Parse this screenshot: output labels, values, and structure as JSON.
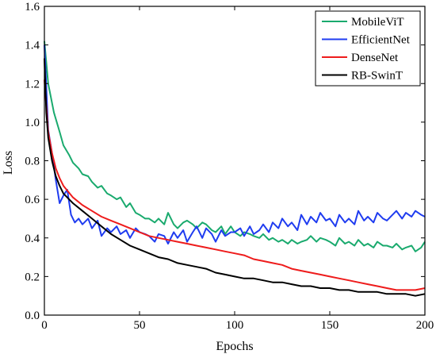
{
  "chart_data": {
    "type": "line",
    "title": "",
    "xlabel": "Epochs",
    "ylabel": "Loss",
    "xlim": [
      0,
      200
    ],
    "ylim": [
      0.0,
      1.6
    ],
    "x_ticks": [
      "0",
      "50",
      "100",
      "150",
      "200"
    ],
    "y_ticks": [
      "0.0",
      "0.2",
      "0.4",
      "0.6",
      "0.8",
      "1.0",
      "1.2",
      "1.4",
      "1.6"
    ],
    "grid": false,
    "legend_position": "top-right",
    "series": [
      {
        "name": "MobileViT",
        "color": "#1aaa6e",
        "x": [
          0,
          2,
          5,
          8,
          10,
          13,
          15,
          18,
          20,
          23,
          25,
          28,
          30,
          33,
          35,
          38,
          40,
          43,
          45,
          48,
          50,
          53,
          55,
          58,
          60,
          63,
          65,
          68,
          70,
          73,
          75,
          78,
          80,
          83,
          85,
          88,
          90,
          93,
          95,
          98,
          100,
          103,
          105,
          108,
          110,
          113,
          115,
          118,
          120,
          123,
          125,
          128,
          130,
          133,
          135,
          138,
          140,
          143,
          145,
          148,
          150,
          153,
          155,
          158,
          160,
          163,
          165,
          168,
          170,
          173,
          175,
          178,
          180,
          183,
          185,
          188,
          190,
          193,
          195,
          198,
          200
        ],
        "values": [
          1.42,
          1.2,
          1.05,
          0.95,
          0.88,
          0.83,
          0.79,
          0.76,
          0.73,
          0.72,
          0.69,
          0.66,
          0.67,
          0.63,
          0.62,
          0.6,
          0.61,
          0.56,
          0.58,
          0.53,
          0.52,
          0.5,
          0.5,
          0.48,
          0.5,
          0.47,
          0.53,
          0.47,
          0.45,
          0.48,
          0.49,
          0.47,
          0.45,
          0.48,
          0.47,
          0.44,
          0.43,
          0.46,
          0.42,
          0.46,
          0.43,
          0.41,
          0.43,
          0.42,
          0.41,
          0.4,
          0.42,
          0.39,
          0.4,
          0.38,
          0.39,
          0.37,
          0.39,
          0.37,
          0.38,
          0.39,
          0.41,
          0.38,
          0.4,
          0.39,
          0.38,
          0.36,
          0.4,
          0.37,
          0.38,
          0.36,
          0.39,
          0.36,
          0.37,
          0.35,
          0.38,
          0.36,
          0.36,
          0.35,
          0.37,
          0.34,
          0.35,
          0.36,
          0.33,
          0.35,
          0.38
        ]
      },
      {
        "name": "EfficientNet",
        "color": "#1f3cf0",
        "x": [
          0,
          2,
          4,
          6,
          8,
          10,
          12,
          14,
          16,
          18,
          20,
          23,
          25,
          28,
          30,
          33,
          35,
          38,
          40,
          43,
          45,
          48,
          50,
          53,
          55,
          58,
          60,
          63,
          65,
          68,
          70,
          73,
          75,
          78,
          80,
          83,
          85,
          88,
          90,
          93,
          95,
          98,
          100,
          103,
          105,
          108,
          110,
          113,
          115,
          118,
          120,
          123,
          125,
          128,
          130,
          133,
          135,
          138,
          140,
          143,
          145,
          148,
          150,
          153,
          155,
          158,
          160,
          163,
          165,
          168,
          170,
          173,
          175,
          178,
          180,
          183,
          185,
          188,
          190,
          193,
          195,
          198,
          200
        ],
        "values": [
          1.4,
          0.96,
          0.84,
          0.7,
          0.58,
          0.62,
          0.65,
          0.52,
          0.48,
          0.5,
          0.47,
          0.5,
          0.45,
          0.49,
          0.41,
          0.45,
          0.43,
          0.46,
          0.42,
          0.44,
          0.4,
          0.45,
          0.43,
          0.42,
          0.41,
          0.38,
          0.42,
          0.41,
          0.37,
          0.43,
          0.4,
          0.44,
          0.38,
          0.43,
          0.46,
          0.4,
          0.45,
          0.42,
          0.38,
          0.44,
          0.41,
          0.43,
          0.43,
          0.45,
          0.41,
          0.46,
          0.42,
          0.44,
          0.47,
          0.43,
          0.48,
          0.45,
          0.5,
          0.46,
          0.48,
          0.44,
          0.52,
          0.47,
          0.51,
          0.48,
          0.53,
          0.49,
          0.5,
          0.46,
          0.52,
          0.48,
          0.5,
          0.47,
          0.54,
          0.49,
          0.51,
          0.48,
          0.53,
          0.5,
          0.49,
          0.52,
          0.54,
          0.5,
          0.53,
          0.51,
          0.54,
          0.52,
          0.51
        ]
      },
      {
        "name": "DenseNet",
        "color": "#ee1c1c",
        "x": [
          0,
          2,
          4,
          6,
          8,
          10,
          15,
          20,
          25,
          30,
          35,
          40,
          45,
          50,
          55,
          60,
          65,
          70,
          75,
          80,
          85,
          90,
          95,
          100,
          105,
          110,
          115,
          120,
          125,
          130,
          135,
          140,
          145,
          150,
          155,
          160,
          165,
          170,
          175,
          180,
          185,
          190,
          195,
          200
        ],
        "values": [
          1.22,
          0.95,
          0.84,
          0.76,
          0.71,
          0.67,
          0.61,
          0.57,
          0.54,
          0.51,
          0.49,
          0.47,
          0.45,
          0.43,
          0.41,
          0.4,
          0.39,
          0.38,
          0.37,
          0.36,
          0.35,
          0.34,
          0.33,
          0.32,
          0.31,
          0.29,
          0.28,
          0.27,
          0.26,
          0.24,
          0.23,
          0.22,
          0.21,
          0.2,
          0.19,
          0.18,
          0.17,
          0.16,
          0.15,
          0.14,
          0.13,
          0.13,
          0.13,
          0.14
        ]
      },
      {
        "name": "RB-SwinT",
        "color": "#000000",
        "x": [
          0,
          1,
          2,
          4,
          6,
          8,
          10,
          15,
          20,
          25,
          30,
          35,
          40,
          45,
          50,
          55,
          60,
          65,
          70,
          75,
          80,
          85,
          90,
          95,
          100,
          105,
          110,
          115,
          120,
          125,
          130,
          135,
          140,
          145,
          150,
          155,
          160,
          165,
          170,
          175,
          180,
          185,
          190,
          195,
          200
        ],
        "values": [
          1.33,
          1.05,
          0.92,
          0.8,
          0.72,
          0.67,
          0.63,
          0.58,
          0.54,
          0.5,
          0.46,
          0.42,
          0.39,
          0.36,
          0.34,
          0.32,
          0.3,
          0.29,
          0.27,
          0.26,
          0.25,
          0.24,
          0.22,
          0.21,
          0.2,
          0.19,
          0.19,
          0.18,
          0.17,
          0.17,
          0.16,
          0.15,
          0.15,
          0.14,
          0.14,
          0.13,
          0.13,
          0.12,
          0.12,
          0.12,
          0.11,
          0.11,
          0.11,
          0.1,
          0.11
        ]
      }
    ]
  }
}
